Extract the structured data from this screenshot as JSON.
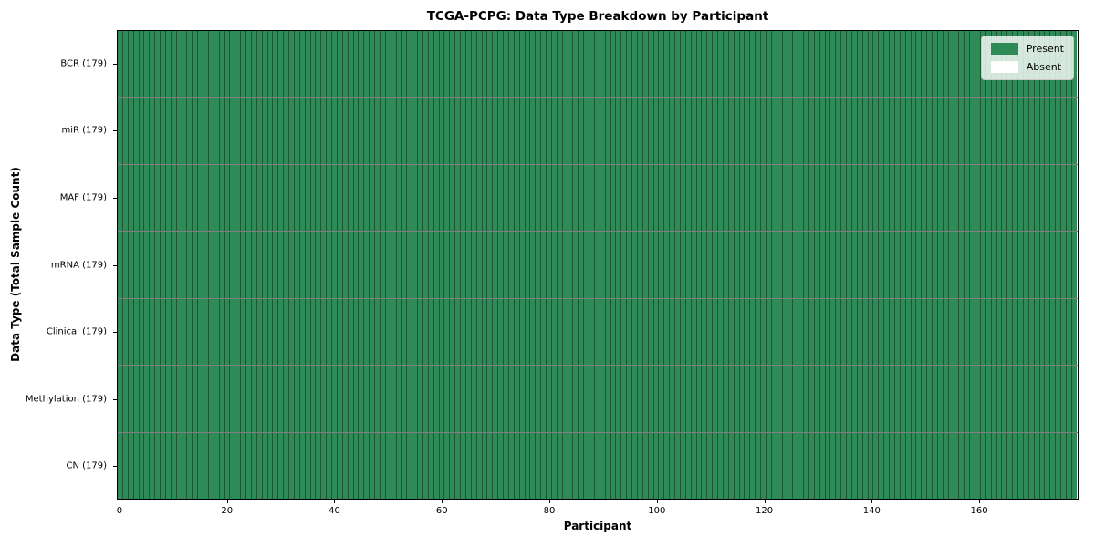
{
  "title": "TCGA-PCPG: Data Type Breakdown by Participant",
  "axes": {
    "xlabel": "Participant",
    "ylabel": "Data Type (Total Sample Count)"
  },
  "legend": {
    "present_label": "Present",
    "absent_label": "Absent",
    "position": "upper right"
  },
  "colors": {
    "present": "#2e8b57",
    "absent": "#ffffff",
    "cell_edge": "rgba(0,0,0,0.38)",
    "row_divider": "rgba(0,0,0,0.5)",
    "spine": "#000000"
  },
  "chart_data": {
    "type": "heatmap",
    "title": "TCGA-PCPG: Data Type Breakdown by Participant",
    "xlabel": "Participant",
    "ylabel": "Data Type (Total Sample Count)",
    "participants": 179,
    "x_range": [
      0,
      179
    ],
    "x_ticks": [
      0,
      20,
      40,
      60,
      80,
      100,
      120,
      140,
      160
    ],
    "grid": false,
    "legend_entries": [
      "Present",
      "Absent"
    ],
    "legend_position": "upper right",
    "rows": [
      {
        "label": "BCR (179)",
        "data_type": "BCR",
        "total_samples": 179,
        "present_count": 179,
        "absent_count": 0
      },
      {
        "label": "miR (179)",
        "data_type": "miR",
        "total_samples": 179,
        "present_count": 179,
        "absent_count": 0
      },
      {
        "label": "MAF (179)",
        "data_type": "MAF",
        "total_samples": 179,
        "present_count": 179,
        "absent_count": 0
      },
      {
        "label": "mRNA (179)",
        "data_type": "mRNA",
        "total_samples": 179,
        "present_count": 179,
        "absent_count": 0
      },
      {
        "label": "Clinical (179)",
        "data_type": "Clinical",
        "total_samples": 179,
        "present_count": 179,
        "absent_count": 0
      },
      {
        "label": "Methylation (179)",
        "data_type": "Methylation",
        "total_samples": 179,
        "present_count": 179,
        "absent_count": 0
      },
      {
        "label": "CN (179)",
        "data_type": "CN",
        "total_samples": 179,
        "present_count": 179,
        "absent_count": 0
      }
    ]
  }
}
